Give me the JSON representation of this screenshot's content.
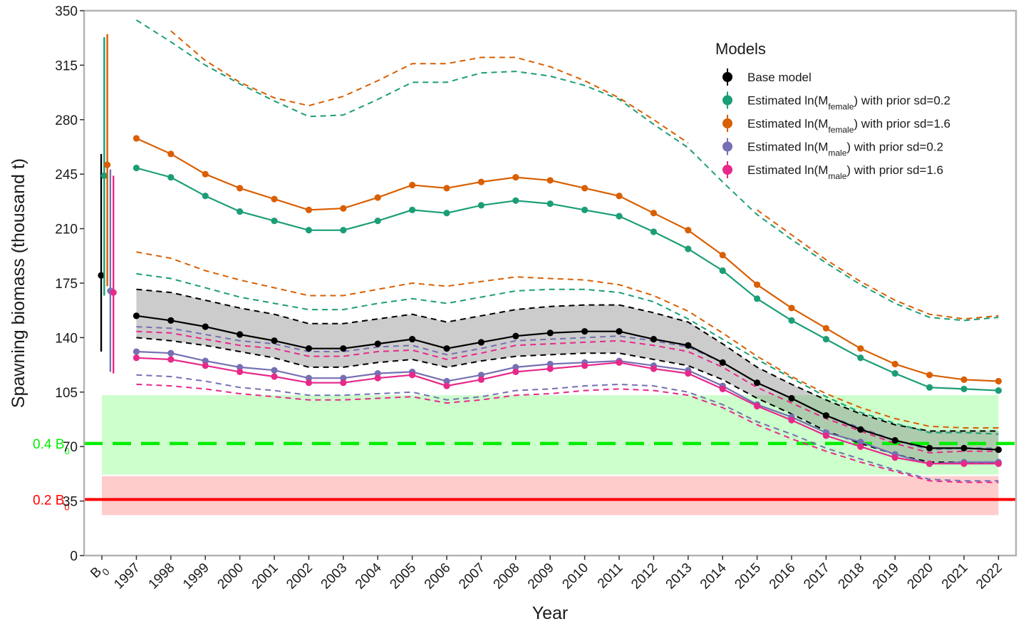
{
  "chart_data": {
    "type": "line",
    "xlabel": "Year",
    "ylabel": "Spawning biomass (thousand t)",
    "ylim": [
      0,
      350
    ],
    "yticks": [
      "0",
      "35",
      "70",
      "105",
      "140",
      "175",
      "210",
      "245",
      "280",
      "315",
      "350"
    ],
    "x_b0_label": "B",
    "x_b0_sub": "0",
    "years": [
      "1997",
      "1998",
      "1999",
      "2000",
      "2001",
      "2002",
      "2003",
      "2004",
      "2005",
      "2006",
      "2007",
      "2008",
      "2009",
      "2010",
      "2011",
      "2012",
      "2013",
      "2014",
      "2015",
      "2016",
      "2017",
      "2018",
      "2019",
      "2020",
      "2021",
      "2022"
    ],
    "legend": {
      "title": "Models",
      "placement": "top-right"
    },
    "series": [
      {
        "id": "base",
        "name": "Base model",
        "color": "#000000",
        "values": [
          154,
          151,
          147,
          142,
          138,
          133,
          133,
          136,
          139,
          133,
          137,
          141,
          143,
          144,
          144,
          139,
          135,
          124,
          111,
          101,
          90,
          81,
          74,
          69,
          69,
          68
        ],
        "lower": [
          140,
          138,
          135,
          131,
          127,
          121,
          121,
          124,
          126,
          121,
          125,
          128,
          129,
          130,
          130,
          126,
          122,
          113,
          101,
          91,
          80,
          72,
          65,
          60,
          60,
          59
        ],
        "upper": [
          171,
          169,
          164,
          159,
          155,
          149,
          149,
          152,
          155,
          150,
          154,
          158,
          160,
          161,
          161,
          156,
          150,
          136,
          121,
          110,
          100,
          91,
          84,
          80,
          80,
          80
        ],
        "b0": {
          "value": 180,
          "lower": 131,
          "upper": 258
        },
        "ci_band": true
      },
      {
        "id": "mf02",
        "name_prefix": "Estimated ln(M",
        "name_sub": "female",
        "name_suffix": ") with prior sd=0.2",
        "color": "#1b9e77",
        "values": [
          249,
          243,
          231,
          221,
          215,
          209,
          209,
          215,
          222,
          220,
          225,
          228,
          226,
          222,
          218,
          208,
          197,
          183,
          165,
          151,
          139,
          127,
          117,
          108,
          107,
          106
        ],
        "lower": [
          181,
          178,
          172,
          166,
          162,
          158,
          158,
          162,
          165,
          162,
          166,
          170,
          171,
          171,
          169,
          163,
          152,
          139,
          126,
          114,
          102,
          92,
          85,
          79,
          79,
          78
        ],
        "upper": [
          344,
          330,
          315,
          303,
          292,
          282,
          283,
          293,
          304,
          304,
          310,
          311,
          308,
          302,
          293,
          277,
          262,
          240,
          219,
          203,
          188,
          174,
          162,
          153,
          151,
          153
        ],
        "b0": {
          "value": 244,
          "lower": 167,
          "upper": 333
        }
      },
      {
        "id": "mf16",
        "name_prefix": "Estimated ln(M",
        "name_sub": "female",
        "name_suffix": ") with prior sd=1.6",
        "color": "#d95f02",
        "values": [
          268,
          258,
          245,
          236,
          229,
          222,
          223,
          230,
          238,
          236,
          240,
          243,
          241,
          236,
          231,
          220,
          209,
          193,
          174,
          159,
          146,
          133,
          123,
          116,
          113,
          112
        ],
        "lower": [
          195,
          191,
          183,
          177,
          172,
          167,
          167,
          171,
          175,
          173,
          176,
          179,
          178,
          177,
          174,
          167,
          157,
          143,
          128,
          115,
          104,
          95,
          88,
          83,
          82,
          82
        ],
        "upper": null,
        "upper_sparse": [
          [
            1998,
            337
          ],
          [
            1999,
            318
          ],
          [
            2000,
            304
          ],
          [
            2001,
            294
          ],
          [
            2002,
            289
          ],
          [
            2003,
            295
          ],
          [
            2004,
            305
          ],
          [
            2005,
            316
          ],
          [
            2006,
            316
          ],
          [
            2007,
            320
          ],
          [
            2008,
            320
          ],
          [
            2009,
            314
          ],
          [
            2010,
            305
          ],
          [
            2011,
            294
          ],
          [
            2012,
            280
          ],
          [
            2013,
            265
          ],
          [
            2015,
            222
          ],
          [
            2016,
            206
          ],
          [
            2017,
            190
          ],
          [
            2018,
            176
          ],
          [
            2019,
            164
          ],
          [
            2020,
            155
          ],
          [
            2021,
            152
          ],
          [
            2022,
            154
          ]
        ],
        "b0": {
          "value": 251,
          "lower": 173,
          "upper": 335
        }
      },
      {
        "id": "mm02",
        "name_prefix": "Estimated ln(M",
        "name_sub": "male",
        "name_suffix": ") with prior sd=0.2",
        "color": "#7570b3",
        "values": [
          131,
          130,
          125,
          121,
          119,
          114,
          114,
          117,
          118,
          112,
          116,
          121,
          123,
          124,
          125,
          122,
          119,
          109,
          97,
          89,
          79,
          73,
          65,
          59,
          60,
          60
        ],
        "lower": [
          116,
          115,
          112,
          108,
          106,
          103,
          103,
          104,
          105,
          100,
          102,
          106,
          107,
          109,
          110,
          109,
          105,
          97,
          86,
          78,
          69,
          62,
          55,
          49,
          48,
          48
        ],
        "upper": [
          147,
          146,
          142,
          138,
          136,
          131,
          131,
          134,
          135,
          129,
          133,
          138,
          139,
          140,
          141,
          138,
          134,
          124,
          111,
          101,
          90,
          82,
          74,
          68,
          69,
          69
        ],
        "b0": {
          "value": 170,
          "lower": 118,
          "upper": 248
        }
      },
      {
        "id": "mm16",
        "name_prefix": "Estimated ln(M",
        "name_sub": "male",
        "name_suffix": ") with prior sd=1.6",
        "color": "#e7298a",
        "values": [
          127,
          126,
          122,
          118,
          115,
          111,
          111,
          114,
          116,
          109,
          113,
          118,
          120,
          122,
          124,
          120,
          117,
          107,
          96,
          87,
          77,
          70,
          63,
          59,
          59,
          59
        ],
        "lower": [
          110,
          109,
          107,
          104,
          102,
          100,
          100,
          101,
          102,
          98,
          100,
          103,
          104,
          106,
          107,
          106,
          103,
          95,
          84,
          75,
          67,
          60,
          54,
          48,
          47,
          47
        ],
        "upper": [
          144,
          143,
          139,
          135,
          133,
          128,
          128,
          131,
          132,
          126,
          130,
          135,
          136,
          137,
          138,
          135,
          131,
          121,
          108,
          98,
          88,
          80,
          72,
          66,
          67,
          67
        ],
        "b0": {
          "value": 169,
          "lower": 117,
          "upper": 244
        }
      }
    ],
    "reference_lines": [
      {
        "id": "target",
        "label_prefix": "0.4 B",
        "label_sub": "0",
        "value": 72,
        "color": "#00ee00",
        "style": "dashed"
      },
      {
        "id": "limit",
        "label_prefix": "0.2 B",
        "label_sub": "0",
        "value": 36,
        "color": "#ff0000",
        "style": "solid"
      }
    ],
    "zones": [
      {
        "id": "green-zone",
        "from": 52,
        "to": 103,
        "color": "#ccffcc"
      },
      {
        "id": "red-zone",
        "from": 26,
        "to": 51,
        "color": "#ffcccc"
      }
    ]
  }
}
